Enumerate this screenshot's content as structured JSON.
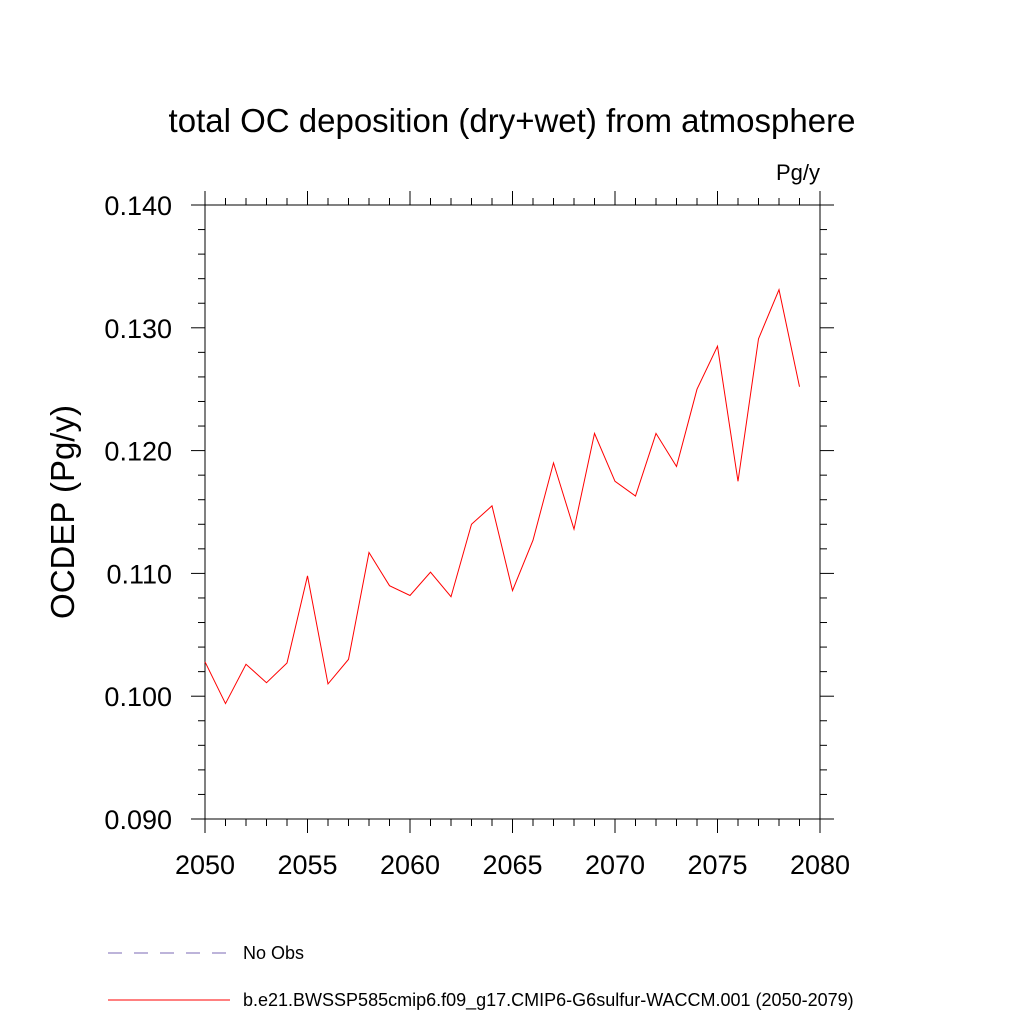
{
  "chart_data": {
    "type": "line",
    "title": "total OC deposition (dry+wet) from atmosphere",
    "units_label": "Pg/y",
    "ylabel": "OCDEP  (Pg/y)",
    "xlabel": "",
    "xlim": [
      2050,
      2080
    ],
    "ylim": [
      0.09,
      0.14
    ],
    "x_ticks": [
      2050,
      2055,
      2060,
      2065,
      2070,
      2075,
      2080
    ],
    "x_tick_labels": [
      "2050",
      "2055",
      "2060",
      "2065",
      "2070",
      "2075",
      "2080"
    ],
    "y_ticks": [
      0.09,
      0.1,
      0.11,
      0.12,
      0.13,
      0.14
    ],
    "y_tick_labels": [
      "0.090",
      "0.100",
      "0.110",
      "0.120",
      "0.130",
      "0.140"
    ],
    "grid": false,
    "legend_position": "bottom-left",
    "x": [
      2050,
      2051,
      2052,
      2053,
      2054,
      2055,
      2056,
      2057,
      2058,
      2059,
      2060,
      2061,
      2062,
      2063,
      2064,
      2065,
      2066,
      2067,
      2068,
      2069,
      2070,
      2071,
      2072,
      2073,
      2074,
      2075,
      2076,
      2077,
      2078,
      2079
    ],
    "series": [
      {
        "name": "b.e21.BWSSP585cmip6.f09_g17.CMIP6-G6sulfur-WACCM.001 (2050-2079)",
        "color": "#ff0000",
        "style": "solid",
        "values": [
          0.1028,
          0.0994,
          0.1026,
          0.1011,
          0.1027,
          0.1098,
          0.101,
          0.103,
          0.1117,
          0.109,
          0.1082,
          0.1101,
          0.1081,
          0.114,
          0.1155,
          0.1086,
          0.1127,
          0.119,
          0.1136,
          0.1214,
          0.1175,
          0.1163,
          0.1214,
          0.1187,
          0.125,
          0.1285,
          0.1175,
          0.1291,
          0.1331,
          0.1252
        ]
      }
    ],
    "legend": [
      {
        "label": "No Obs",
        "color": "#7b68b5",
        "style": "dashed"
      },
      {
        "label": "b.e21.BWSSP585cmip6.f09_g17.CMIP6-G6sulfur-WACCM.001 (2050-2079)",
        "color": "#ff0000",
        "style": "solid"
      }
    ]
  }
}
